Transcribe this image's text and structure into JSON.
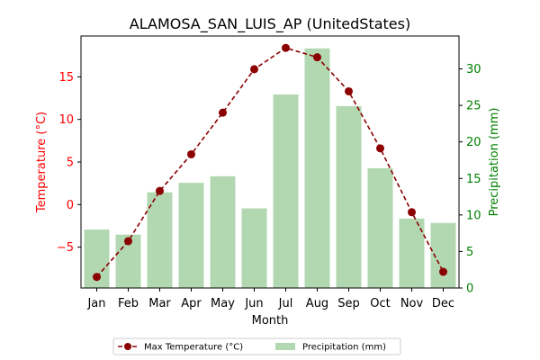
{
  "chart_data": {
    "type": "bar+line",
    "title": "ALAMOSA_SAN_LUIS_AP (UnitedStates)",
    "xlabel": "Month",
    "ylabel_left": "Temperature (°C)",
    "ylabel_right": "Precipitation (mm)",
    "categories": [
      "Jan",
      "Feb",
      "Mar",
      "Apr",
      "May",
      "Jun",
      "Jul",
      "Aug",
      "Sep",
      "Oct",
      "Nov",
      "Dec"
    ],
    "ylim_left": [
      -9.8,
      19.8
    ],
    "ylim_right": [
      0,
      34.5
    ],
    "yticks_left": [
      -5,
      0,
      5,
      10,
      15
    ],
    "yticks_right": [
      0,
      5,
      10,
      15,
      20,
      25,
      30
    ],
    "grid": false,
    "legend_position": "bottom-center",
    "series": [
      {
        "name": "Max Temperature (°C)",
        "kind": "line",
        "axis": "left",
        "color": "#8b0000",
        "style": "dashed",
        "marker": "circle",
        "values": [
          -8.5,
          -4.3,
          1.6,
          5.9,
          10.8,
          15.9,
          18.4,
          17.3,
          13.3,
          6.6,
          -0.9,
          -7.9
        ]
      },
      {
        "name": "Precipitation (mm)",
        "kind": "bar",
        "axis": "right",
        "color": "#b2d8b2",
        "values": [
          8.0,
          7.3,
          13.1,
          14.4,
          15.3,
          10.9,
          26.5,
          32.8,
          24.9,
          16.4,
          9.5,
          8.9
        ]
      }
    ],
    "colors": {
      "left_axis": "#ff0000",
      "right_axis": "#008000"
    }
  }
}
